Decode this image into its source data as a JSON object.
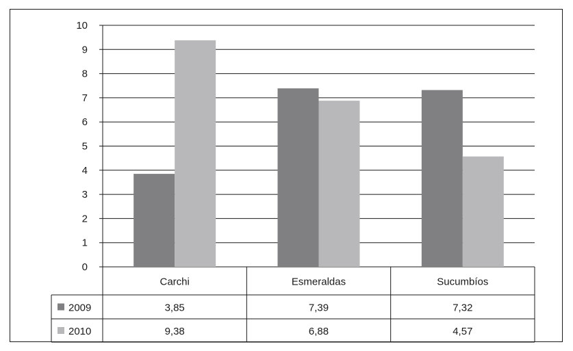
{
  "chart_data": {
    "type": "bar",
    "title": "",
    "xlabel": "",
    "ylabel": "",
    "categories": [
      "Carchi",
      "Esmeraldas",
      "Sucumbíos"
    ],
    "series": [
      {
        "name": "2009",
        "values": [
          3.85,
          7.39,
          7.32
        ],
        "value_labels": [
          "3,85",
          "7,39",
          "7,32"
        ],
        "color": "#808083"
      },
      {
        "name": "2010",
        "values": [
          9.38,
          6.88,
          4.57
        ],
        "value_labels": [
          "9,38",
          "6,88",
          "4,57"
        ],
        "color": "#b8b8ba"
      }
    ],
    "ylim": [
      0,
      10
    ],
    "yticks": [
      0,
      1,
      2,
      3,
      4,
      5,
      6,
      7,
      8,
      9,
      10
    ],
    "grid": true,
    "legend": "data-table-left"
  }
}
